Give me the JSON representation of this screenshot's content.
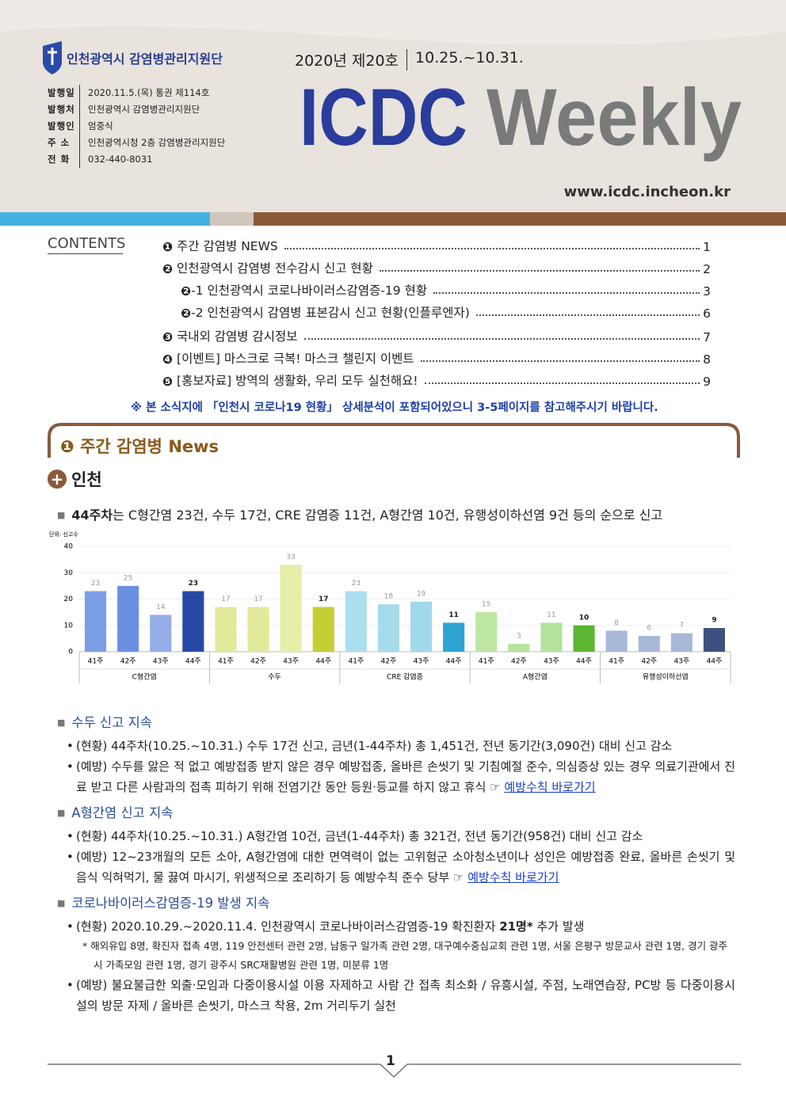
{
  "header": {
    "org": "인천광역시 감염병관리지원단",
    "issue": "2020년 제20호",
    "period": "10.25.~10.31.",
    "title_main": "ICDC",
    "title_sub": "Weekly",
    "url": "www.icdc.incheon.kr",
    "info": [
      [
        "발행일",
        "2020.11.5.(목) 통권 제114호"
      ],
      [
        "발행처",
        "인천광역시 감염병관리지원단"
      ],
      [
        "발행인",
        "엄중식"
      ],
      [
        "주 소",
        "인천광역시청 2층 감염병관리지원단"
      ],
      [
        "전 화",
        "032-440-8031"
      ]
    ]
  },
  "contents": {
    "label": "CONTENTS",
    "items": [
      {
        "marker": "❶",
        "text": " 주간 감염병 NEWS",
        "page": 1
      },
      {
        "marker": "❷",
        "text": " 인천광역시 감염병 전수감시 신고 현황",
        "page": 2
      },
      {
        "marker": "❷",
        "text": "-1 인천광역시 코로나바이러스감염증-19 현황",
        "page": 3
      },
      {
        "marker": "❷",
        "text": "-2 인천광역시 감염병 표본감시 신고 현황(인플루엔자)",
        "page": 6
      },
      {
        "marker": "❸",
        "text": " 국내외 감염병 감시정보",
        "page": 7
      },
      {
        "marker": "❹",
        "text": " [이벤트] 마스크로 극복! 마스크 챌린지 이벤트",
        "page": 8
      },
      {
        "marker": "❺",
        "text": " [홍보자료] 방역의 생활화, 우리 모두 실천해요!",
        "page": 9
      }
    ],
    "note": "※ 본 소식지에 「인천시 코로나19 현황」 상세분석이 포함되어있으니 3-5페이지를 참고해주시기 바랍니다."
  },
  "section": {
    "marker": "❶",
    "title": "주간 감염병 News",
    "subtitle": "인천"
  },
  "summary": {
    "strong": "44주차",
    "text": "는 C형간염 23건, 수두 17건, CRE 감염증 11건, A형간염 10건, 유행성이하선염 9건 등의 순으로 신고"
  },
  "chart_data": {
    "type": "bar",
    "y_label": "단위: 신고수",
    "categories": [
      "41주",
      "42주",
      "43주",
      "44주"
    ],
    "series": [
      {
        "name": "C형간염",
        "colors": [
          "#7b9ee6",
          "#6b8fe0",
          "#95aee8",
          "#2749a5"
        ],
        "values": [
          23,
          25,
          14,
          23
        ]
      },
      {
        "name": "수두",
        "colors": [
          "#e3e99b",
          "#e3e99b",
          "#e8eda9",
          "#c3cf33"
        ],
        "values": [
          17,
          17,
          33,
          17
        ]
      },
      {
        "name": "CRE 감염증",
        "colors": [
          "#abdfee",
          "#a5dbeb",
          "#a0daea",
          "#2ea4d3"
        ],
        "values": [
          23,
          18,
          19,
          11
        ]
      },
      {
        "name": "A형간염",
        "colors": [
          "#bde6a4",
          "#b8e3a0",
          "#b4e29c",
          "#5cb632"
        ],
        "values": [
          15,
          3,
          11,
          10
        ]
      },
      {
        "name": "유행성이하선염",
        "colors": [
          "#a8b9d8",
          "#a8b9d8",
          "#a8b9d8",
          "#3d5181"
        ],
        "values": [
          8,
          6,
          7,
          9
        ]
      }
    ],
    "ylim": [
      0,
      40
    ],
    "yticks": [
      0,
      10,
      20,
      30,
      40
    ],
    "grid": true
  },
  "topics": [
    {
      "title": "수두 신고 지속",
      "bullets": [
        {
          "text": "(현황) 44주차(10.25.~10.31.) 수두 17건 신고, 금년(1-44주차) 총 1,451건, 전년 동기간(3,090건) 대비 신고 감소"
        },
        {
          "text": "(예방) 수두를 앓은 적 없고 예방접종 받지 않은 경우 예방접종, 올바른 손씻기 및 기침예절 준수, 의심증상 있는 경우 의료기관에서 진료 받고 다른 사람과의 접촉 피하기 위해 전염기간 동안 등원·등교를 하지 않고 휴식 ☞ ",
          "link": "예방수칙 바로가기"
        }
      ]
    },
    {
      "title": "A형간염 신고 지속",
      "bullets": [
        {
          "text": "(현황) 44주차(10.25.~10.31.) A형간염 10건, 금년(1-44주차) 총 321건, 전년 동기간(958건) 대비 신고 감소"
        },
        {
          "text": "(예방) 12~23개월의 모든 소아, A형간염에 대한 면역력이 없는 고위험군 소아청소년이나 성인은 예방접종 완료, 올바른 손씻기 및 음식 익혀먹기, 물 끓여 마시기, 위생적으로 조리하기 등 예방수칙 준수 당부 ☞ ",
          "link": "예방수칙 바로가기"
        }
      ]
    },
    {
      "title": "코로나바이러스감염증-19 발생 지속",
      "bullets": [
        {
          "text": "(현황) 2020.10.29.~2020.11.4. 인천광역시 코로나바이러스감염증-19 확진환자 ",
          "strong": "21명*",
          "tail": " 추가 발생",
          "note": "* 해외유입 8명, 확진자 접촉 4명, 119 안전센터 관련 2명, 남동구 일가족 관련 2명, 대구예수중심교회 관련 1명, 서울 은평구 방문교사 관련 1명, 경기 광주시 가족모임 관련 1명, 경기 광주시 SRC재활병원 관련 1명, 미분류 1명"
        },
        {
          "text": "(예방) 불요불급한 외출·모임과 다중이용시설 이용 자제하고 사람 간 접촉 최소화 / 유흥시설, 주점, 노래연습장, PC방 등 다중이용시설의 방문 자제 / 올바른 손씻기, 마스크 착용, 2m 거리두기 실천"
        }
      ]
    }
  ],
  "footer": {
    "page": 1
  }
}
